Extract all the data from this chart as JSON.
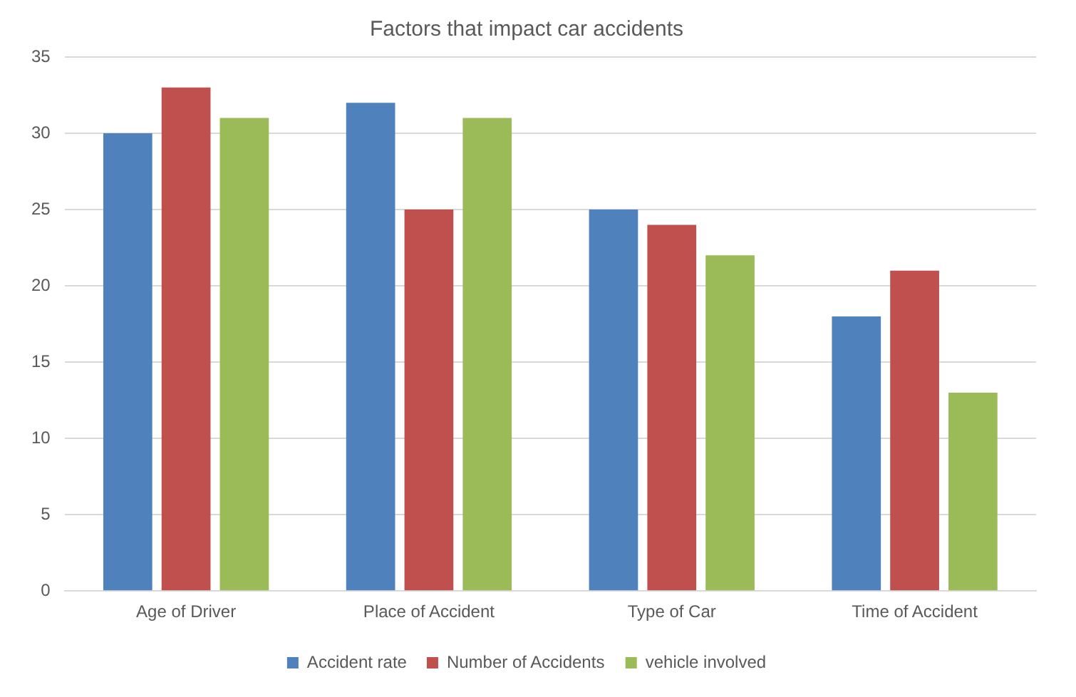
{
  "chart_data": {
    "type": "bar",
    "title": "Factors that impact car accidents",
    "categories": [
      "Age of Driver",
      "Place of Accident",
      "Type of Car",
      "Time of Accident"
    ],
    "series": [
      {
        "name": "Accident rate",
        "color": "#4f81bd",
        "values": [
          30,
          32,
          25,
          18
        ]
      },
      {
        "name": "Number of Accidents",
        "color": "#c0504d",
        "values": [
          33,
          25,
          24,
          21
        ]
      },
      {
        "name": "vehicle involved",
        "color": "#9bbb59",
        "values": [
          31,
          31,
          22,
          13
        ]
      }
    ],
    "ylim": [
      0,
      35
    ],
    "yticks": [
      0,
      5,
      10,
      15,
      20,
      25,
      30,
      35
    ],
    "grid": "y",
    "legend": "bottom"
  }
}
